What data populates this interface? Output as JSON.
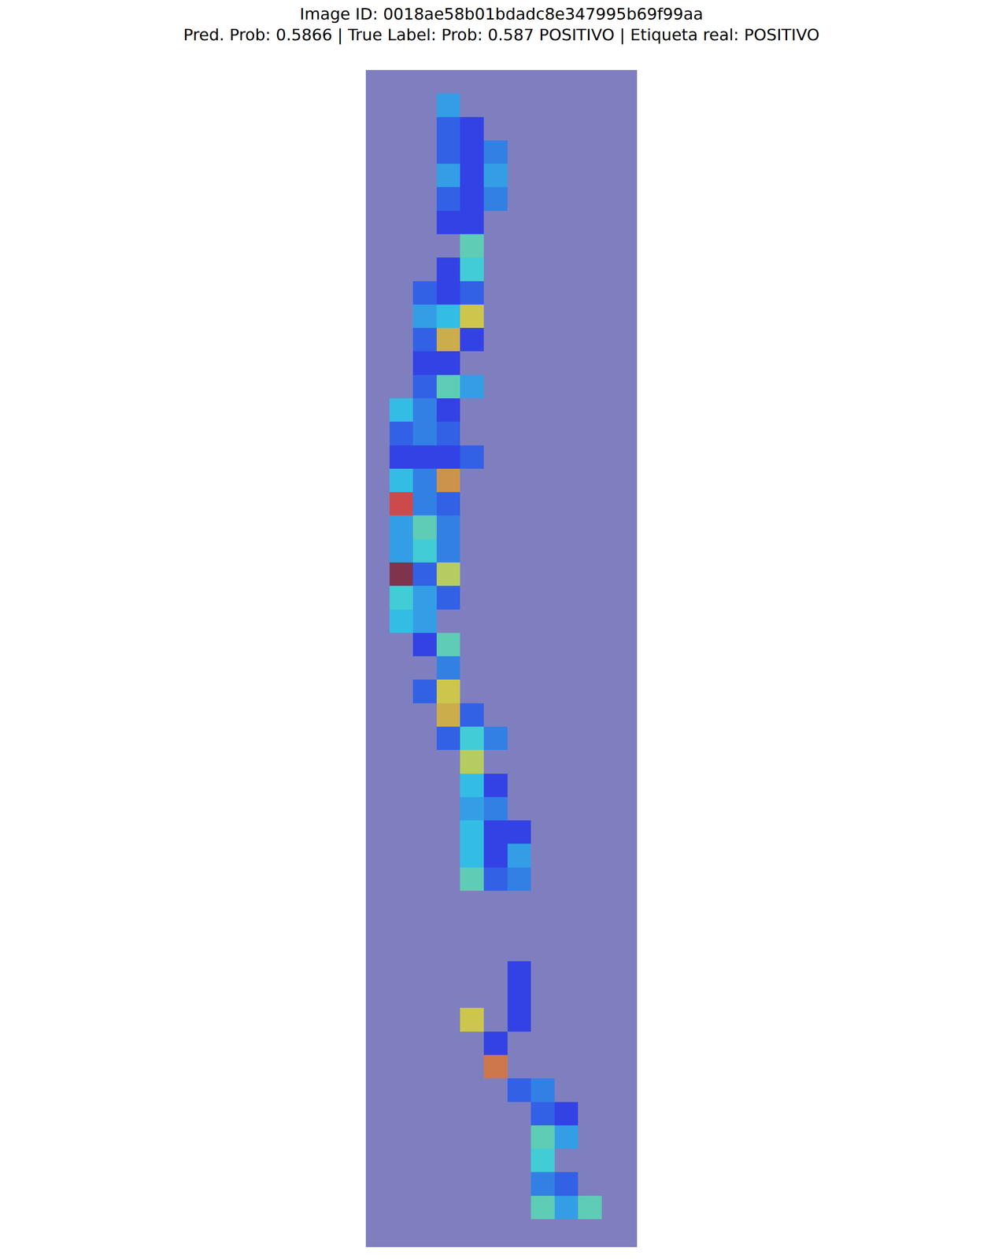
{
  "chart_data": {
    "type": "heatmap",
    "title": [
      "Image ID: 0018ae58b01bdadc8e347995b69f99aa",
      "Pred. Prob: 0.5866 | True Label: Prob: 0.587 POSITIVO | Etiqueta real: POSITIVO"
    ],
    "xlim": [
      -0.5,
      11
    ],
    "ylim": [
      49.7,
      -0.5
    ],
    "zlim": [
      0,
      1
    ],
    "tick_labels": false,
    "cells": [
      [
        1,
        3,
        0.3
      ],
      [
        2,
        3,
        0.2
      ],
      [
        2,
        4,
        0.15
      ],
      [
        3,
        3,
        0.2
      ],
      [
        3,
        4,
        0.15
      ],
      [
        3,
        5,
        0.25
      ],
      [
        4,
        3,
        0.3
      ],
      [
        4,
        4,
        0.15
      ],
      [
        4,
        5,
        0.3
      ],
      [
        5,
        3,
        0.2
      ],
      [
        5,
        4,
        0.15
      ],
      [
        5,
        5,
        0.25
      ],
      [
        6,
        3,
        0.15
      ],
      [
        6,
        4,
        0.15
      ],
      [
        7,
        4,
        0.45
      ],
      [
        8,
        3,
        0.15
      ],
      [
        8,
        4,
        0.4
      ],
      [
        9,
        2,
        0.2
      ],
      [
        9,
        3,
        0.15
      ],
      [
        9,
        4,
        0.2
      ],
      [
        10,
        2,
        0.3
      ],
      [
        10,
        3,
        0.35
      ],
      [
        10,
        4,
        0.65
      ],
      [
        11,
        2,
        0.2
      ],
      [
        11,
        3,
        0.7
      ],
      [
        11,
        4,
        0.15
      ],
      [
        12,
        2,
        0.15
      ],
      [
        12,
        3,
        0.15
      ],
      [
        13,
        2,
        0.2
      ],
      [
        13,
        3,
        0.45
      ],
      [
        13,
        4,
        0.3
      ],
      [
        14,
        1,
        0.35
      ],
      [
        14,
        2,
        0.25
      ],
      [
        14,
        3,
        0.15
      ],
      [
        15,
        1,
        0.2
      ],
      [
        15,
        2,
        0.25
      ],
      [
        15,
        3,
        0.2
      ],
      [
        16,
        1,
        0.15
      ],
      [
        16,
        2,
        0.15
      ],
      [
        16,
        3,
        0.15
      ],
      [
        16,
        4,
        0.2
      ],
      [
        17,
        1,
        0.35
      ],
      [
        17,
        2,
        0.25
      ],
      [
        17,
        3,
        0.75
      ],
      [
        18,
        1,
        0.88
      ],
      [
        18,
        2,
        0.25
      ],
      [
        18,
        3,
        0.2
      ],
      [
        19,
        1,
        0.3
      ],
      [
        19,
        2,
        0.45
      ],
      [
        19,
        3,
        0.25
      ],
      [
        20,
        1,
        0.3
      ],
      [
        20,
        2,
        0.4
      ],
      [
        20,
        3,
        0.25
      ],
      [
        21,
        1,
        1.0
      ],
      [
        21,
        2,
        0.2
      ],
      [
        21,
        3,
        0.6
      ],
      [
        22,
        1,
        0.4
      ],
      [
        22,
        2,
        0.3
      ],
      [
        22,
        3,
        0.2
      ],
      [
        23,
        1,
        0.35
      ],
      [
        23,
        2,
        0.3
      ],
      [
        24,
        2,
        0.15
      ],
      [
        24,
        3,
        0.45
      ],
      [
        25,
        3,
        0.25
      ],
      [
        26,
        2,
        0.2
      ],
      [
        26,
        3,
        0.65
      ],
      [
        27,
        3,
        0.7
      ],
      [
        27,
        4,
        0.2
      ],
      [
        28,
        3,
        0.2
      ],
      [
        28,
        4,
        0.4
      ],
      [
        28,
        5,
        0.25
      ],
      [
        29,
        4,
        0.6
      ],
      [
        30,
        4,
        0.35
      ],
      [
        30,
        5,
        0.15
      ],
      [
        31,
        4,
        0.3
      ],
      [
        31,
        5,
        0.25
      ],
      [
        32,
        4,
        0.35
      ],
      [
        32,
        5,
        0.15
      ],
      [
        32,
        6,
        0.15
      ],
      [
        33,
        4,
        0.35
      ],
      [
        33,
        5,
        0.15
      ],
      [
        33,
        6,
        0.3
      ],
      [
        34,
        4,
        0.45
      ],
      [
        34,
        5,
        0.2
      ],
      [
        34,
        6,
        0.25
      ],
      [
        38,
        6,
        0.15
      ],
      [
        39,
        6,
        0.15
      ],
      [
        40,
        4,
        0.65
      ],
      [
        40,
        6,
        0.15
      ],
      [
        41,
        5,
        0.15
      ],
      [
        42,
        5,
        0.8
      ],
      [
        43,
        6,
        0.2
      ],
      [
        43,
        7,
        0.25
      ],
      [
        44,
        7,
        0.2
      ],
      [
        44,
        8,
        0.15
      ],
      [
        45,
        7,
        0.45
      ],
      [
        45,
        8,
        0.3
      ],
      [
        46,
        7,
        0.4
      ],
      [
        47,
        7,
        0.25
      ],
      [
        47,
        8,
        0.2
      ],
      [
        48,
        7,
        0.45
      ],
      [
        48,
        8,
        0.3
      ],
      [
        48,
        9,
        0.45
      ]
    ]
  }
}
